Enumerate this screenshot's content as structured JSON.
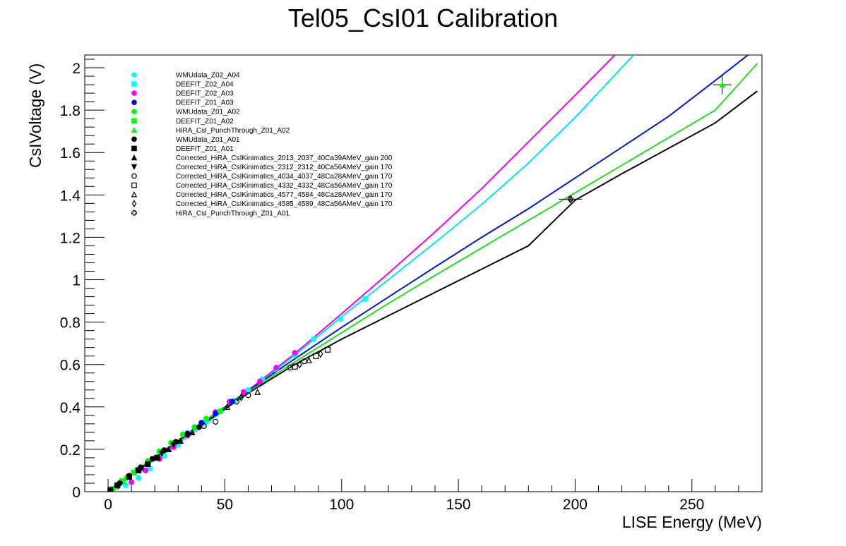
{
  "chart_data": {
    "type": "scatter",
    "title": "Tel05_CsI01 Calibration",
    "xlabel": "LISE Energy (MeV)",
    "ylabel": "CsIVoltage (V)",
    "xlim": [
      -10,
      280
    ],
    "ylim": [
      0,
      2.06
    ],
    "xticks": [
      0,
      50,
      100,
      150,
      200,
      250
    ],
    "yticks": [
      0,
      0.2,
      0.4,
      0.6,
      0.8,
      1,
      1.2,
      1.4,
      1.6,
      1.8,
      2
    ],
    "x_tick_labels": [
      "0",
      "50",
      "100",
      "150",
      "200",
      "250"
    ],
    "y_tick_labels": [
      "0",
      "0.2",
      "0.4",
      "0.6",
      "0.8",
      "1",
      "1.2",
      "1.4",
      "1.6",
      "1.8",
      "2"
    ],
    "grid": false,
    "legend_position": "top-left",
    "colors": {
      "cyan": "#00ffff",
      "magenta": "#ff00ff",
      "blue": "#0000ff",
      "green": "#00ff00",
      "black": "#000000",
      "fit_cyan": "#00e5ee",
      "fit_magenta": "#ee00ee",
      "fit_blue": "#0018c8",
      "fit_green": "#22dd22"
    },
    "series": [
      {
        "name": "WMUdata_Z02_A04",
        "color": "#00ffff",
        "marker": "circle-filled",
        "points": [
          [
            7.5,
            0.03
          ],
          [
            13,
            0.065
          ],
          [
            18,
            0.11
          ],
          [
            24,
            0.17
          ],
          [
            30,
            0.22
          ],
          [
            36,
            0.28
          ],
          [
            42,
            0.33
          ],
          [
            48,
            0.38
          ],
          [
            54,
            0.43
          ],
          [
            60,
            0.48
          ],
          [
            66,
            0.53
          ],
          [
            72,
            0.58
          ],
          [
            80,
            0.645
          ],
          [
            88,
            0.72
          ],
          [
            99.5,
            0.815
          ],
          [
            110,
            0.91
          ]
        ]
      },
      {
        "name": "DEEFIT_Z02_A04",
        "color": "#00ffff",
        "marker": "square-filled",
        "points": [
          [
            110,
            0.91
          ]
        ]
      },
      {
        "name": "DEEFIT_Z02_A03",
        "color": "#ff00ff",
        "marker": "circle-filled",
        "points": [
          [
            10,
            0.045
          ],
          [
            16,
            0.1
          ],
          [
            22,
            0.155
          ],
          [
            28,
            0.21
          ],
          [
            34,
            0.265
          ],
          [
            40,
            0.325
          ],
          [
            46,
            0.375
          ],
          [
            52,
            0.425
          ],
          [
            58,
            0.47
          ],
          [
            65,
            0.52
          ],
          [
            72,
            0.585
          ],
          [
            80,
            0.655
          ]
        ]
      },
      {
        "name": "DEEFIT_Z01_A03",
        "color": "#0000ff",
        "marker": "circle-filled",
        "points": [
          [
            4,
            0.025
          ],
          [
            9,
            0.07
          ],
          [
            14,
            0.11
          ],
          [
            19,
            0.155
          ],
          [
            24,
            0.195
          ],
          [
            29,
            0.235
          ],
          [
            34,
            0.275
          ],
          [
            40,
            0.325
          ],
          [
            46,
            0.37
          ],
          [
            53,
            0.425
          ]
        ]
      },
      {
        "name": "WMUdata_Z01_A02",
        "color": "#00ff00",
        "marker": "circle-filled",
        "points": [
          [
            3.5,
            0.025
          ],
          [
            8,
            0.065
          ],
          [
            12.5,
            0.105
          ],
          [
            17,
            0.145
          ],
          [
            22,
            0.19
          ],
          [
            27,
            0.23
          ],
          [
            32,
            0.27
          ],
          [
            37,
            0.305
          ],
          [
            42,
            0.345
          ],
          [
            48,
            0.38
          ]
        ]
      },
      {
        "name": "DEEFIT_Z01_A02",
        "color": "#00ff00",
        "marker": "square-filled",
        "points": [
          [
            2,
            0.012
          ],
          [
            6,
            0.05
          ],
          [
            11,
            0.09
          ]
        ]
      },
      {
        "name": "HiRA_CsI_PunchThrough_Z01_A02",
        "color": "#00ff00",
        "marker": "triangle-up-filled",
        "points": [
          [
            263,
            1.92
          ]
        ],
        "xerr": [
          4
        ],
        "yerr": [
          0.045
        ]
      },
      {
        "name": "WMUdata_Z01_A01",
        "color": "#000000",
        "marker": "circle-filled",
        "points": [
          [
            1,
            0.006
          ],
          [
            5,
            0.04
          ],
          [
            9,
            0.075
          ],
          [
            14,
            0.115
          ],
          [
            19,
            0.155
          ],
          [
            24,
            0.195
          ],
          [
            29,
            0.235
          ],
          [
            34,
            0.27
          ],
          [
            39,
            0.305
          ]
        ]
      },
      {
        "name": "DEEFIT_Z01_A01",
        "color": "#000000",
        "marker": "square-filled",
        "points": [
          [
            1,
            0.008
          ],
          [
            4,
            0.03
          ],
          [
            9,
            0.07
          ],
          [
            13,
            0.1
          ],
          [
            17,
            0.13
          ],
          [
            21,
            0.16
          ]
        ]
      },
      {
        "name": "Corrected_HiRA_CsIKinimatics_2013_2037_40Ca39AMeV_gain 200",
        "color": "#000000",
        "marker": "triangle-up-filled",
        "points": [
          [
            26,
            0.2
          ],
          [
            31,
            0.24
          ],
          [
            36,
            0.28
          ]
        ]
      },
      {
        "name": "Corrected_HiRA_CsIKinimatics_2312_2312_40Ca56AMeV_gain 170",
        "color": "#000000",
        "marker": "triangle-down-filled",
        "points": [
          [
            23,
            0.18
          ],
          [
            28,
            0.22
          ]
        ]
      },
      {
        "name": "Corrected_HiRA_CsIKinimatics_4034_4037_48Ca28AMeV_gain 170",
        "color": "#000000",
        "marker": "circle-open",
        "points": [
          [
            41,
            0.31
          ],
          [
            46,
            0.33
          ],
          [
            55,
            0.425
          ],
          [
            60,
            0.455
          ],
          [
            78,
            0.585
          ],
          [
            84,
            0.615
          ]
        ]
      },
      {
        "name": "Corrected_HiRA_CsIKinimatics_4332_4332_48Ca56AMeV_gain 170",
        "color": "#000000",
        "marker": "square-open",
        "points": [
          [
            80,
            0.59
          ],
          [
            89,
            0.64
          ],
          [
            94,
            0.67
          ]
        ]
      },
      {
        "name": "Corrected_HiRA_CsIKinimatics_4577_4584_48Ca28AMeV_gain 170",
        "color": "#000000",
        "marker": "triangle-up-open",
        "points": [
          [
            51,
            0.4
          ],
          [
            64,
            0.47
          ],
          [
            86,
            0.62
          ]
        ]
      },
      {
        "name": "Corrected_HiRA_CsIKinimatics_4585_4589_48Ca56AMeV_gain 170",
        "color": "#000000",
        "marker": "diamond-open",
        "points": [
          [
            57,
            0.445
          ],
          [
            82,
            0.6
          ],
          [
            91,
            0.65
          ]
        ]
      },
      {
        "name": "HiRA_CsI_PunchThrough_Z01_A01",
        "color": "#000000",
        "marker": "cross-open",
        "points": [
          [
            198,
            1.38
          ]
        ],
        "xerr": [
          5
        ],
        "yerr": [
          0.02
        ]
      }
    ],
    "fit_lines": [
      {
        "color": "#ee00ee",
        "x": [
          0,
          20,
          40,
          60,
          80,
          100,
          120,
          140,
          160,
          180,
          200,
          217
        ],
        "y": [
          0,
          0.16,
          0.318,
          0.478,
          0.652,
          0.84,
          1.03,
          1.225,
          1.43,
          1.65,
          1.87,
          2.06
        ]
      },
      {
        "color": "#00e5ee",
        "x": [
          0,
          20,
          40,
          60,
          80,
          100,
          120,
          140,
          160,
          180,
          200,
          225
        ],
        "y": [
          0,
          0.15,
          0.305,
          0.47,
          0.645,
          0.825,
          1.0,
          1.175,
          1.355,
          1.55,
          1.765,
          2.06
        ]
      },
      {
        "color": "#0018c8",
        "x": [
          0,
          20,
          40,
          60,
          80,
          100,
          120,
          140,
          160,
          180,
          200,
          220,
          240,
          260,
          274
        ],
        "y": [
          0,
          0.163,
          0.322,
          0.476,
          0.627,
          0.775,
          0.918,
          1.06,
          1.2,
          1.335,
          1.48,
          1.625,
          1.77,
          1.94,
          2.06
        ]
      },
      {
        "color": "#22dd22",
        "x": [
          0,
          20,
          40,
          60,
          80,
          100,
          120,
          140,
          160,
          180,
          200,
          220,
          240,
          260,
          278
        ],
        "y": [
          0,
          0.165,
          0.32,
          0.47,
          0.612,
          0.75,
          0.888,
          1.02,
          1.15,
          1.28,
          1.41,
          1.54,
          1.67,
          1.8,
          2.02
        ]
      },
      {
        "color": "#000000",
        "x": [
          0,
          20,
          40,
          60,
          80,
          100,
          120,
          140,
          160,
          180,
          200,
          220,
          240,
          260,
          278
        ],
        "y": [
          0,
          0.16,
          0.315,
          0.465,
          0.6,
          0.72,
          0.83,
          0.94,
          1.05,
          1.16,
          1.375,
          1.5,
          1.62,
          1.74,
          1.89
        ]
      }
    ]
  }
}
